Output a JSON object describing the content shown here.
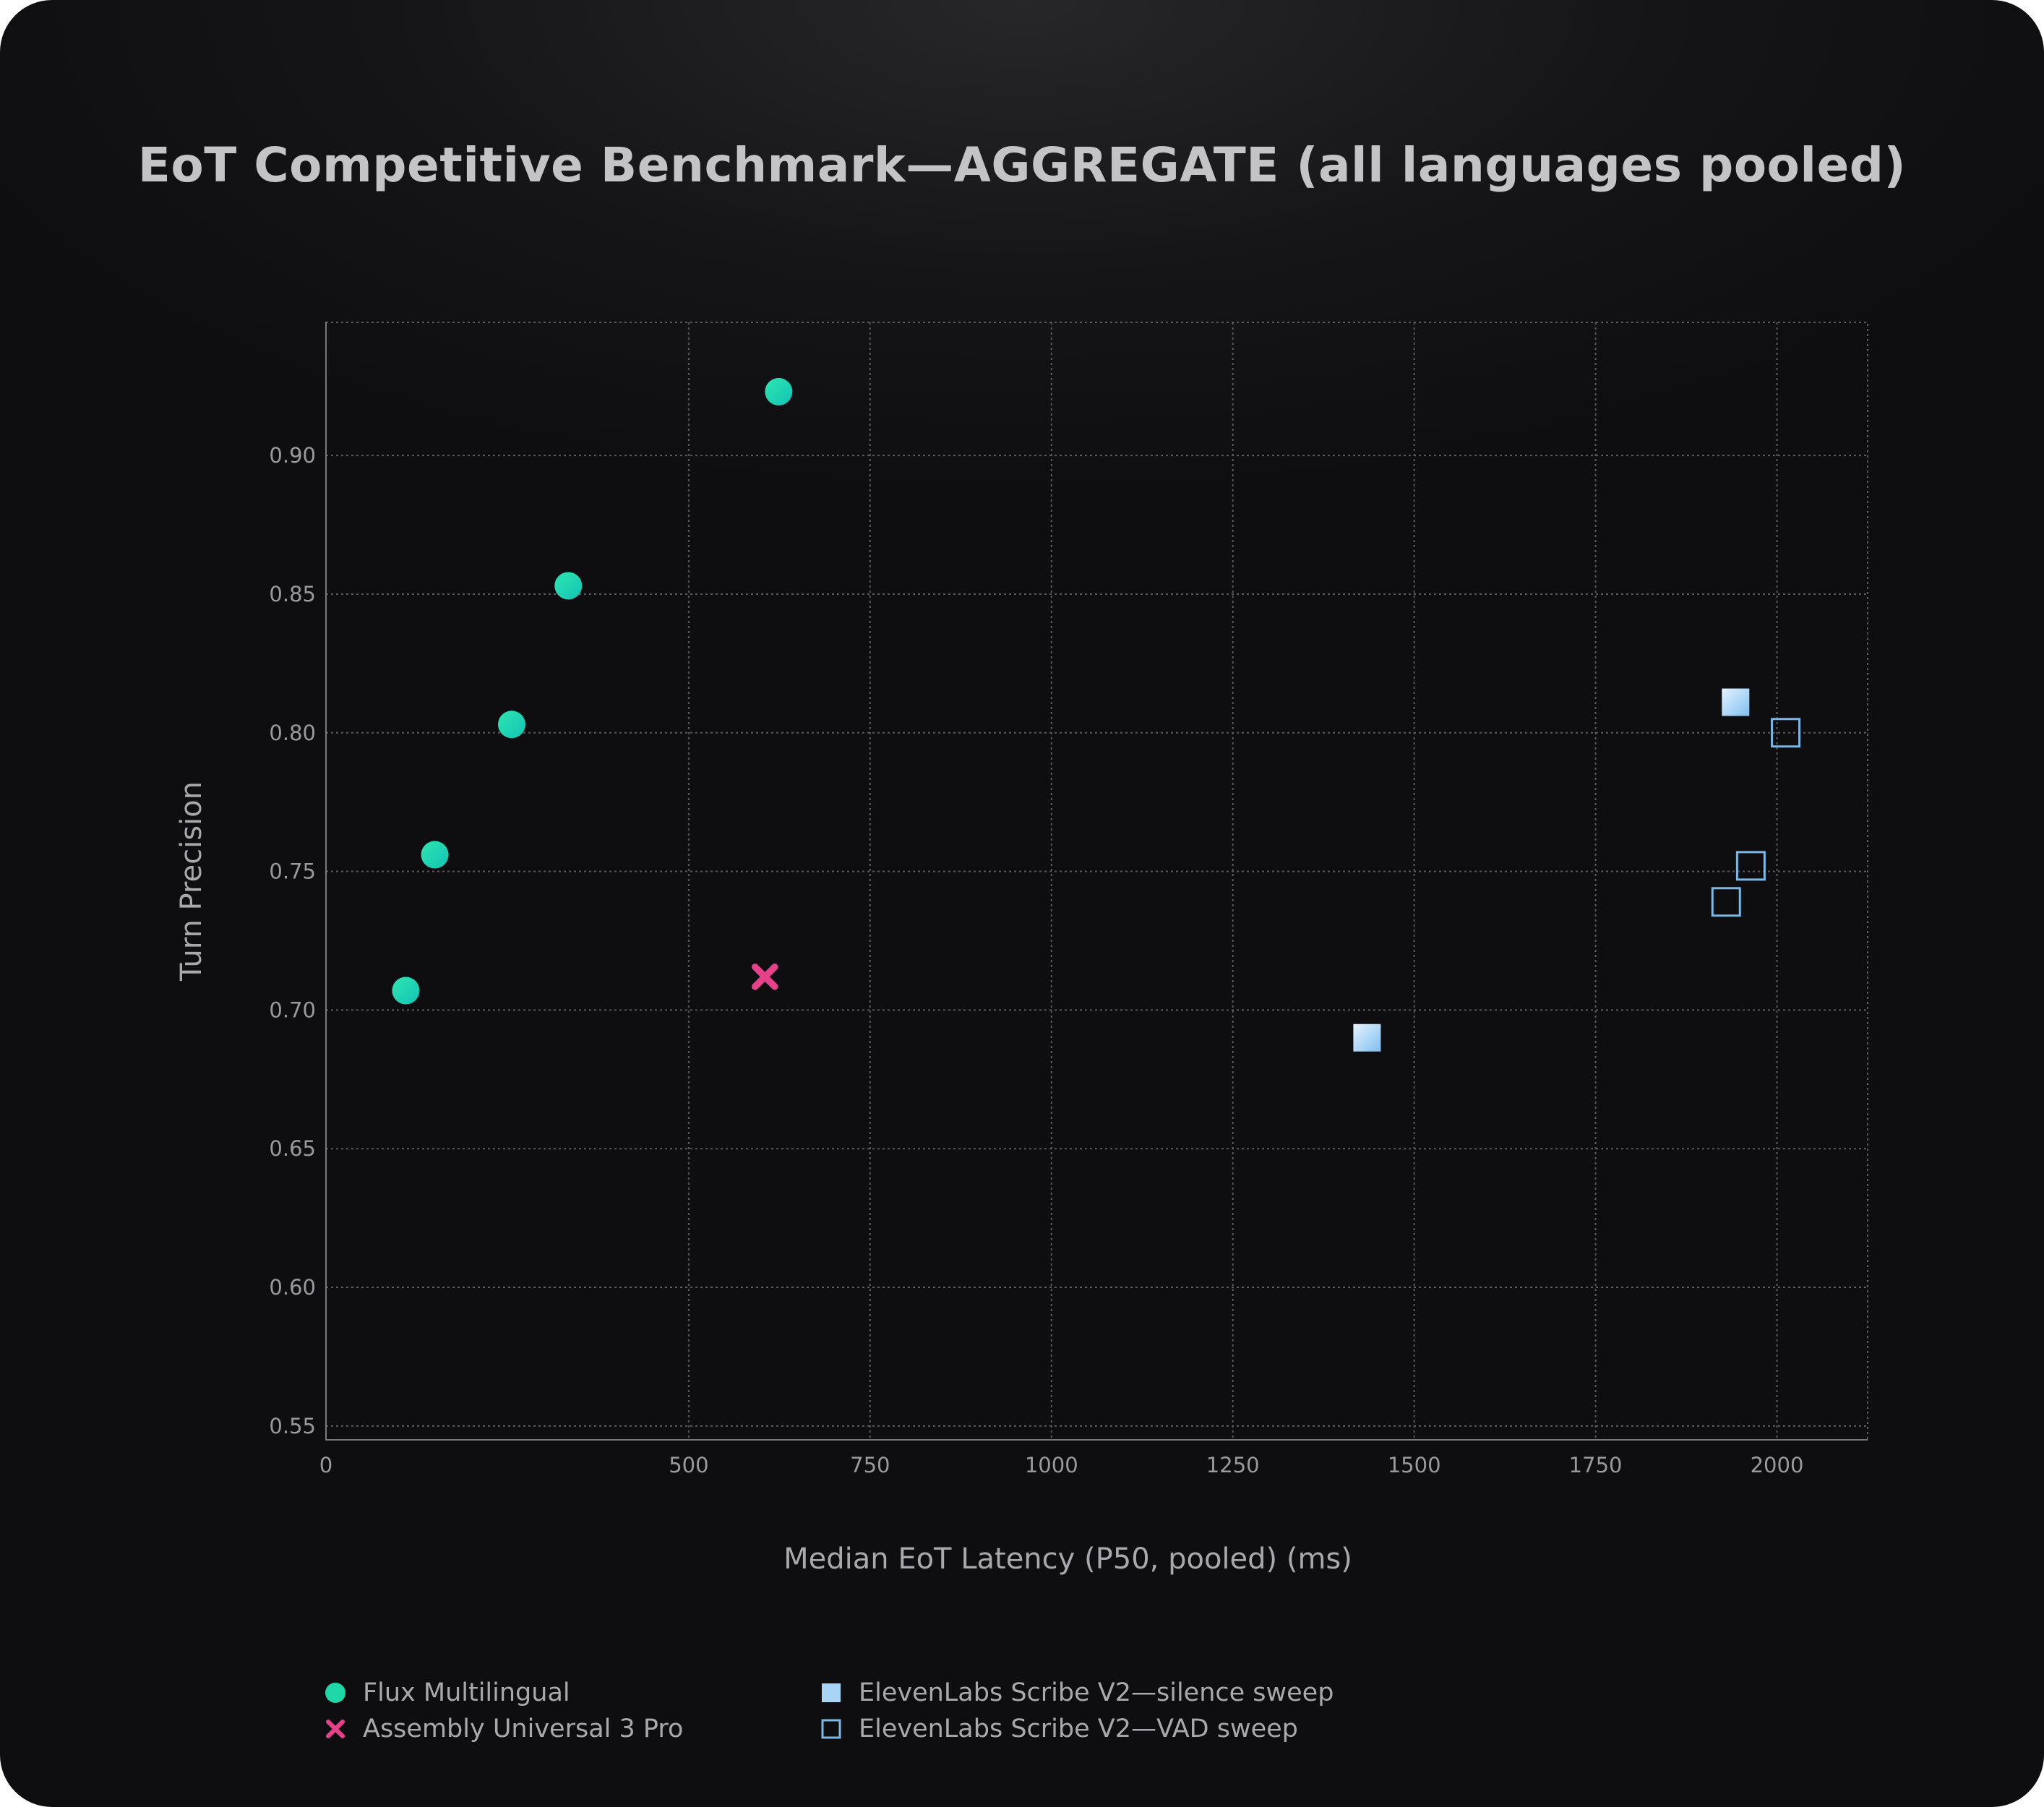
{
  "chart_data": {
    "type": "scatter",
    "title": "EoT Competitive Benchmark—AGGREGATE (all languages pooled)",
    "xlabel": "Median EoT Latency (P50, pooled) (ms)",
    "ylabel": "Turn Precision",
    "xlim": [
      0,
      2125
    ],
    "ylim": [
      0.545,
      0.948
    ],
    "x_ticks": [
      0,
      500,
      750,
      1000,
      1250,
      1500,
      1750,
      2000
    ],
    "y_ticks": [
      0.55,
      0.6,
      0.65,
      0.7,
      0.75,
      0.8,
      0.85,
      0.9
    ],
    "grid": true,
    "legend_position": "bottom",
    "series": [
      {
        "name": "Flux Multilingual",
        "marker": "circle",
        "color": "#1fd8a8",
        "points": [
          {
            "x": 110,
            "y": 0.707
          },
          {
            "x": 150,
            "y": 0.756
          },
          {
            "x": 256,
            "y": 0.803
          },
          {
            "x": 334,
            "y": 0.853
          },
          {
            "x": 624,
            "y": 0.923
          }
        ]
      },
      {
        "name": "Assembly Universal 3 Pro",
        "marker": "x",
        "color": "#e8418c",
        "points": [
          {
            "x": 605,
            "y": 0.712
          }
        ]
      },
      {
        "name": "ElevenLabs Scribe V2—silence sweep",
        "marker": "square-filled",
        "color": "#a8d4f5",
        "points": [
          {
            "x": 1435,
            "y": 0.69
          },
          {
            "x": 1943,
            "y": 0.811
          }
        ]
      },
      {
        "name": "ElevenLabs Scribe V2—VAD sweep",
        "marker": "square-open",
        "color": "#7ab8e6",
        "points": [
          {
            "x": 1930,
            "y": 0.739
          },
          {
            "x": 1964,
            "y": 0.752
          },
          {
            "x": 2012,
            "y": 0.8
          }
        ]
      }
    ]
  }
}
